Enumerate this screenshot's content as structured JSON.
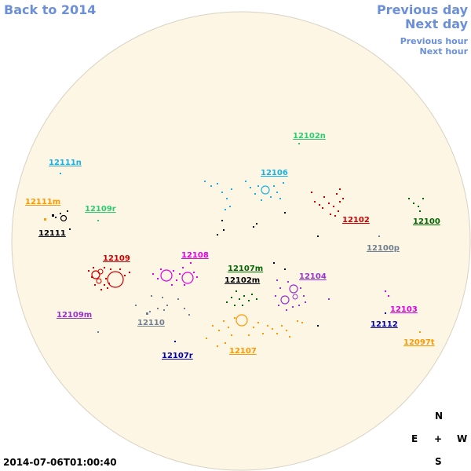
{
  "nav": {
    "back": "Back to 2014",
    "previous_day": "Previous day",
    "next_day": "Next day",
    "previous_hour": "Previous hour",
    "next_hour": "Next hour"
  },
  "timestamp": "2014-07-06T01:00:40",
  "compass": {
    "north": "N",
    "east": "E",
    "center": "+",
    "west": "W",
    "south": "S"
  },
  "colors": {
    "disk_fill": "#fdf6e4",
    "disk_stroke": "#d8d2c4",
    "nav": "#6b8fd8"
  },
  "regions": [
    {
      "id": "12102n",
      "label": "12102n",
      "color": "#2ecc71"
    },
    {
      "id": "12111n",
      "label": "12111n",
      "color": "#1ab2e6"
    },
    {
      "id": "12106",
      "label": "12106",
      "color": "#1ab2e6"
    },
    {
      "id": "12111m",
      "label": "12111m",
      "color": "#ff9900"
    },
    {
      "id": "12109r",
      "label": "12109r",
      "color": "#2ecc71"
    },
    {
      "id": "12102",
      "label": "12102",
      "color": "#cc0000"
    },
    {
      "id": "12100",
      "label": "12100",
      "color": "#006600"
    },
    {
      "id": "12111",
      "label": "12111",
      "color": "#000000"
    },
    {
      "id": "12100p",
      "label": "12100p",
      "color": "#708090"
    },
    {
      "id": "12109",
      "label": "12109",
      "color": "#cc0000"
    },
    {
      "id": "12108",
      "label": "12108",
      "color": "#e000e0"
    },
    {
      "id": "12107m",
      "label": "12107m",
      "color": "#006600"
    },
    {
      "id": "12102m",
      "label": "12102m",
      "color": "#000000"
    },
    {
      "id": "12104",
      "label": "12104",
      "color": "#9933cc"
    },
    {
      "id": "12109m",
      "label": "12109m",
      "color": "#9933cc"
    },
    {
      "id": "12110",
      "label": "12110",
      "color": "#708090"
    },
    {
      "id": "12103",
      "label": "12103",
      "color": "#e000e0"
    },
    {
      "id": "12112",
      "label": "12112",
      "color": "#0000aa"
    },
    {
      "id": "12107",
      "label": "12107",
      "color": "#ff9900"
    },
    {
      "id": "12107r",
      "label": "12107r",
      "color": "#0000aa"
    },
    {
      "id": "12097t",
      "label": "12097t",
      "color": "#ff9900"
    }
  ]
}
